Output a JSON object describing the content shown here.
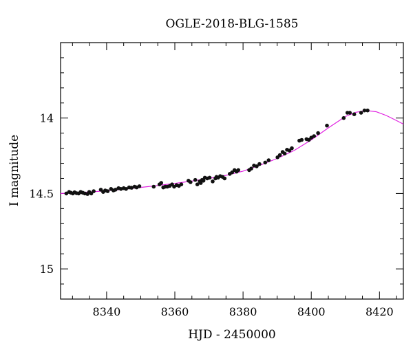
{
  "chart_data": {
    "type": "scatter",
    "title": "OGLE-2018-BLG-1585",
    "xlabel": "HJD - 2450000",
    "ylabel": "I magnitude",
    "xlim": [
      8326.5,
      8427
    ],
    "ylim": [
      15.2,
      13.5
    ],
    "y_inverted": true,
    "grid": false,
    "legend": "none",
    "x_ticks": [
      8340,
      8360,
      8380,
      8400,
      8420
    ],
    "x_tick_labels": [
      "8340",
      "8360",
      "8380",
      "8400",
      "8420"
    ],
    "y_ticks": [
      14,
      14.5,
      15
    ],
    "y_tick_labels": [
      "14",
      "14.5",
      "15"
    ],
    "colors": {
      "points": "#111111",
      "model": "#e020e0",
      "axes": "#000000"
    },
    "series": [
      {
        "kind": "points",
        "x": [
          8328.2,
          8329.0,
          8329.5,
          8330.1,
          8330.6,
          8331.2,
          8331.8,
          8332.4,
          8333.0,
          8333.6,
          8334.4,
          8334.9,
          8335.5,
          8336.2,
          8338.3,
          8339.0,
          8339.6,
          8340.3,
          8341.3,
          8342.0,
          8342.6,
          8343.5,
          8344.2,
          8345.0,
          8345.7,
          8346.6,
          8347.3,
          8348.2,
          8348.8,
          8349.6,
          8353.8,
          8355.5,
          8356.0,
          8356.6,
          8357.2,
          8357.8,
          8358.5,
          8359.2,
          8359.8,
          8360.5,
          8361.2,
          8361.9,
          8364.0,
          8364.6,
          8366.0,
          8366.6,
          8367.3,
          8367.6,
          8368.0,
          8368.4,
          8368.8,
          8369.5,
          8370.2,
          8371.1,
          8371.9,
          8372.2,
          8372.7,
          8373.3,
          8374.0,
          8374.6,
          8376.1,
          8376.8,
          8377.5,
          8378.1,
          8378.6,
          8381.8,
          8382.4,
          8383.2,
          8384.0,
          8384.8,
          8386.5,
          8387.5,
          8390.1,
          8390.8,
          8391.6,
          8392.2,
          8392.9,
          8393.6,
          8394.3,
          8396.5,
          8397.2,
          8398.6,
          8399.3,
          8400.0,
          8400.8,
          8402.0,
          8404.6,
          8409.5,
          8410.6,
          8411.3,
          8412.6,
          8414.6,
          8415.6,
          8416.5
        ],
        "y": [
          14.5,
          14.49,
          14.495,
          14.5,
          14.492,
          14.498,
          14.5,
          14.49,
          14.495,
          14.5,
          14.503,
          14.49,
          14.5,
          14.485,
          14.475,
          14.49,
          14.48,
          14.485,
          14.47,
          14.48,
          14.475,
          14.465,
          14.47,
          14.465,
          14.47,
          14.46,
          14.462,
          14.455,
          14.46,
          14.452,
          14.455,
          14.44,
          14.43,
          14.46,
          14.455,
          14.455,
          14.45,
          14.44,
          14.455,
          14.445,
          14.45,
          14.44,
          14.415,
          14.425,
          14.41,
          14.44,
          14.42,
          14.43,
          14.41,
          14.415,
          14.395,
          14.4,
          14.395,
          14.42,
          14.4,
          14.39,
          14.395,
          14.385,
          14.39,
          14.4,
          14.37,
          14.36,
          14.345,
          14.355,
          14.345,
          14.345,
          14.335,
          14.315,
          14.32,
          14.305,
          14.295,
          14.28,
          14.26,
          14.245,
          14.225,
          14.235,
          14.21,
          14.215,
          14.2,
          14.15,
          14.145,
          14.14,
          14.145,
          14.13,
          14.12,
          14.1,
          14.05,
          14.0,
          13.965,
          13.965,
          13.975,
          13.965,
          13.95,
          13.95
        ]
      },
      {
        "kind": "model",
        "x": [
          8326.5,
          8330,
          8335,
          8340,
          8345,
          8350,
          8355,
          8360,
          8365,
          8370,
          8375,
          8380,
          8385,
          8390,
          8395,
          8400,
          8405,
          8410,
          8413,
          8416,
          8419,
          8422,
          8425,
          8427
        ],
        "y": [
          14.5,
          14.497,
          14.49,
          14.482,
          14.472,
          14.46,
          14.447,
          14.433,
          14.418,
          14.4,
          14.38,
          14.352,
          14.312,
          14.268,
          14.215,
          14.145,
          14.065,
          13.99,
          13.962,
          13.95,
          13.958,
          13.983,
          14.017,
          14.04
        ]
      }
    ]
  }
}
